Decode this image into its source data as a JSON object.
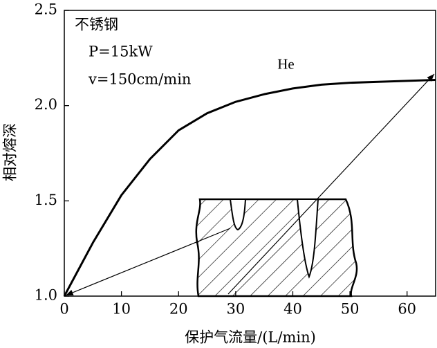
{
  "chart_data": {
    "type": "line",
    "annotations": [
      "不锈钢",
      "P=15kW",
      "v=150cm/min"
    ],
    "x_label": "保护气流量/(L/min)",
    "y_label": "相对熔深",
    "x": [
      0,
      5,
      10,
      15,
      20,
      25,
      30,
      35,
      40,
      45,
      50,
      55,
      60,
      65
    ],
    "series": [
      {
        "name": "He",
        "color": "#000000",
        "values": [
          1.0,
          1.28,
          1.53,
          1.72,
          1.87,
          1.96,
          2.02,
          2.06,
          2.09,
          2.11,
          2.12,
          2.125,
          2.13,
          2.135
        ]
      }
    ],
    "xlim": [
      0,
      65
    ],
    "xticks": [
      0,
      10,
      20,
      30,
      40,
      50,
      60
    ],
    "ylim": [
      1.0,
      2.5
    ],
    "yticks": [
      {
        "value": 1.0,
        "label": "1.0"
      },
      1.5,
      {
        "value": 2.0,
        "label": "2.0"
      },
      2.5
    ],
    "grid": false
  }
}
